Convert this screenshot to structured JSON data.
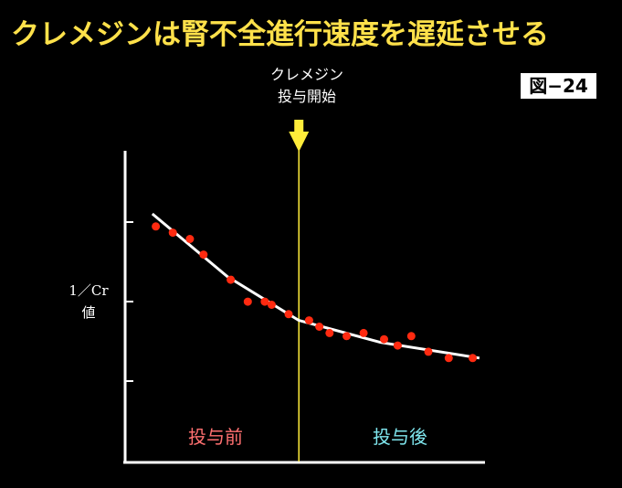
{
  "slide": {
    "title": "クレメジンは腎不全進行速度を遅延させる",
    "figure_label": "図−24",
    "start_marker_line1": "クレメジン",
    "start_marker_line2": "投与開始",
    "ylabel_line1": "1／Cr",
    "ylabel_line2": "値",
    "phase_before": "投与前",
    "phase_after": "投与後"
  },
  "colors": {
    "title": "#ffe14a",
    "points": "#ff2a10",
    "trend": "#ffffff",
    "marker": "#ffec3a",
    "phase_before": "#ff7070",
    "phase_after": "#7fe6ee"
  },
  "chart_data": {
    "type": "scatter",
    "xlabel": "",
    "ylabel": "1／Cr 値",
    "xlim": [
      0,
      100
    ],
    "ylim": [
      0,
      100
    ],
    "intervention_x": 51,
    "points": [
      {
        "x": 9,
        "y": 75
      },
      {
        "x": 14,
        "y": 73
      },
      {
        "x": 19,
        "y": 71
      },
      {
        "x": 23,
        "y": 66
      },
      {
        "x": 31,
        "y": 58
      },
      {
        "x": 36,
        "y": 51
      },
      {
        "x": 41,
        "y": 51
      },
      {
        "x": 43,
        "y": 50
      },
      {
        "x": 48,
        "y": 47
      },
      {
        "x": 54,
        "y": 45
      },
      {
        "x": 57,
        "y": 43
      },
      {
        "x": 60,
        "y": 41
      },
      {
        "x": 65,
        "y": 40
      },
      {
        "x": 70,
        "y": 41
      },
      {
        "x": 76,
        "y": 39
      },
      {
        "x": 80,
        "y": 37
      },
      {
        "x": 84,
        "y": 40
      },
      {
        "x": 89,
        "y": 35
      },
      {
        "x": 95,
        "y": 33
      },
      {
        "x": 102,
        "y": 33
      }
    ],
    "trend": [
      {
        "x": 8,
        "y": 79
      },
      {
        "x": 30,
        "y": 59
      },
      {
        "x": 51,
        "y": 45
      },
      {
        "x": 75,
        "y": 38
      },
      {
        "x": 104,
        "y": 33
      }
    ]
  }
}
